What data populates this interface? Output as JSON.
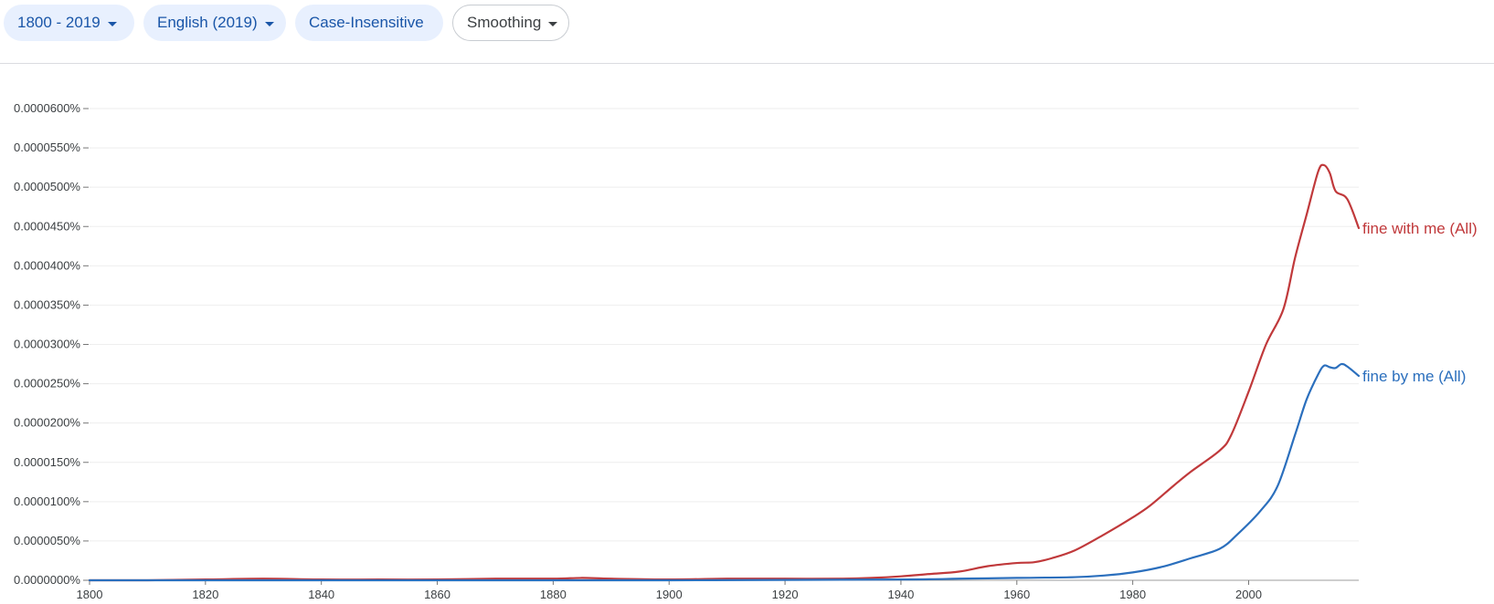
{
  "toolbar": {
    "range_label": "1800 - 2019",
    "corpus_label": "English (2019)",
    "case_label": "Case-Insensitive",
    "smoothing_label": "Smoothing"
  },
  "chart_data": {
    "type": "line",
    "xlim": [
      1800,
      2019
    ],
    "ylim": [
      0,
      6e-05
    ],
    "y_ticks": [
      "0.0000000%",
      "0.0000050%",
      "0.0000100%",
      "0.0000150%",
      "0.0000200%",
      "0.0000250%",
      "0.0000300%",
      "0.0000350%",
      "0.0000400%",
      "0.0000450%",
      "0.0000500%",
      "0.0000550%",
      "0.0000600%"
    ],
    "y_tick_values": [
      0,
      5e-06,
      1e-05,
      1.5e-05,
      2e-05,
      2.5e-05,
      3e-05,
      3.5e-05,
      4e-05,
      4.5e-05,
      5e-05,
      5.5e-05,
      6e-05
    ],
    "x_ticks": [
      "1800",
      "1820",
      "1840",
      "1860",
      "1880",
      "1900",
      "1920",
      "1940",
      "1960",
      "1980",
      "2000"
    ],
    "x_tick_values": [
      1800,
      1820,
      1840,
      1860,
      1880,
      1900,
      1920,
      1940,
      1960,
      1980,
      2000
    ],
    "grid": true,
    "series": [
      {
        "name": "fine with me (All)",
        "color": "#c0393b",
        "points": [
          [
            1800,
            0.0
          ],
          [
            1810,
            0.0
          ],
          [
            1820,
            1e-07
          ],
          [
            1830,
            2e-07
          ],
          [
            1840,
            1e-07
          ],
          [
            1850,
            1e-07
          ],
          [
            1860,
            1e-07
          ],
          [
            1870,
            2e-07
          ],
          [
            1880,
            2e-07
          ],
          [
            1885,
            3e-07
          ],
          [
            1890,
            2e-07
          ],
          [
            1900,
            1e-07
          ],
          [
            1910,
            2e-07
          ],
          [
            1920,
            2e-07
          ],
          [
            1930,
            2e-07
          ],
          [
            1935,
            3e-07
          ],
          [
            1940,
            5e-07
          ],
          [
            1945,
            8e-07
          ],
          [
            1950,
            1.1e-06
          ],
          [
            1955,
            1.8e-06
          ],
          [
            1960,
            2.2e-06
          ],
          [
            1963,
            2.3e-06
          ],
          [
            1966,
            2.8e-06
          ],
          [
            1970,
            3.8e-06
          ],
          [
            1975,
            5.8e-06
          ],
          [
            1980,
            8e-06
          ],
          [
            1983,
            9.5e-06
          ],
          [
            1987,
            1.2e-05
          ],
          [
            1990,
            1.38e-05
          ],
          [
            1995,
            1.65e-05
          ],
          [
            1997,
            1.85e-05
          ],
          [
            2000,
            2.4e-05
          ],
          [
            2003,
            3e-05
          ],
          [
            2006,
            3.45e-05
          ],
          [
            2008,
            4.1e-05
          ],
          [
            2010,
            4.65e-05
          ],
          [
            2012,
            5.2e-05
          ],
          [
            2013,
            5.28e-05
          ],
          [
            2014,
            5.18e-05
          ],
          [
            2015,
            4.95e-05
          ],
          [
            2017,
            4.85e-05
          ],
          [
            2019,
            4.48e-05
          ]
        ]
      },
      {
        "name": "fine by me (All)",
        "color": "#2b6fbd",
        "points": [
          [
            1800,
            0.0
          ],
          [
            1850,
            0.0
          ],
          [
            1900,
            0.0
          ],
          [
            1940,
            1e-07
          ],
          [
            1950,
            2e-07
          ],
          [
            1960,
            3e-07
          ],
          [
            1970,
            4e-07
          ],
          [
            1975,
            6e-07
          ],
          [
            1980,
            1e-06
          ],
          [
            1985,
            1.7e-06
          ],
          [
            1990,
            2.8e-06
          ],
          [
            1995,
            4e-06
          ],
          [
            1998,
            5.8e-06
          ],
          [
            2002,
            8.8e-06
          ],
          [
            2005,
            1.2e-05
          ],
          [
            2008,
            1.85e-05
          ],
          [
            2010,
            2.3e-05
          ],
          [
            2012,
            2.62e-05
          ],
          [
            2013,
            2.73e-05
          ],
          [
            2014,
            2.71e-05
          ],
          [
            2015,
            2.7e-05
          ],
          [
            2016,
            2.75e-05
          ],
          [
            2017,
            2.72e-05
          ],
          [
            2019,
            2.6e-05
          ]
        ]
      }
    ]
  }
}
